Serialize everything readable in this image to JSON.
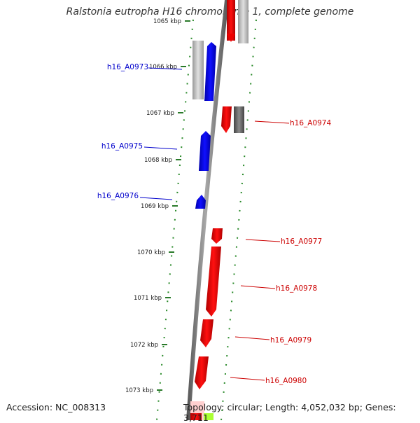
{
  "title": "Ralstonia eutropha H16 chromosome 1, complete genome",
  "footer": {
    "accession": "Accession: NC_008313",
    "topology": "Topology: circular; Length: 4,052,032 bp; Genes: 3,711"
  },
  "colors": {
    "backbone": "#8a8a8a",
    "forward_gene": "#0000ee",
    "reverse_gene": "#ee0000",
    "forward_label": "#0000cc",
    "reverse_label": "#cc0000",
    "pseudo_gene": "#b0b0b0",
    "dark_gene": "#707070",
    "green_gene": "#aaff33",
    "ticks": "#2a7a2a"
  },
  "scale": {
    "unit": "kbp",
    "kbp_ticks": [
      {
        "label": "1065 kbp"
      },
      {
        "label": "1066 kbp"
      },
      {
        "label": "1067 kbp"
      },
      {
        "label": "1068 kbp"
      },
      {
        "label": "1069 kbp"
      },
      {
        "label": "1070 kbp"
      },
      {
        "label": "1071 kbp"
      },
      {
        "label": "1072 kbp"
      },
      {
        "label": "1073 kbp"
      }
    ]
  },
  "genes": [
    {
      "label": "h16_A0973",
      "strand": "forward"
    },
    {
      "label": "h16_A0974",
      "strand": "reverse"
    },
    {
      "label": "h16_A0975",
      "strand": "forward"
    },
    {
      "label": "h16_A0976",
      "strand": "forward"
    },
    {
      "label": "h16_A0977",
      "strand": "reverse"
    },
    {
      "label": "h16_A0978",
      "strand": "reverse"
    },
    {
      "label": "h16_A0979",
      "strand": "reverse"
    },
    {
      "label": "h16_A0980",
      "strand": "reverse"
    }
  ]
}
